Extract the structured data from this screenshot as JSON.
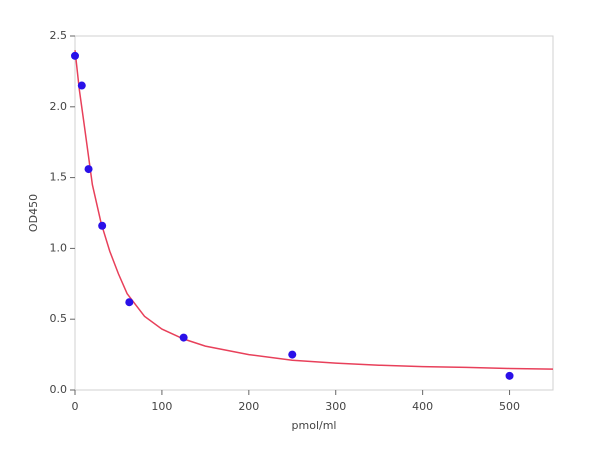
{
  "chart_data": {
    "type": "scatter",
    "xlabel": "pmol/ml",
    "ylabel": "OD450",
    "xlim": [
      0,
      550
    ],
    "ylim": [
      0,
      2.5
    ],
    "xticks": [
      0,
      100,
      200,
      300,
      400,
      500
    ],
    "yticks": [
      {
        "value": 0,
        "label": "0.0"
      },
      0.5,
      {
        "value": 1,
        "label": "1.0"
      },
      1.5,
      {
        "value": 2,
        "label": "2.0"
      },
      2.5
    ],
    "series": [
      {
        "kind": "points",
        "color": "#2a10e8",
        "x": [
          0,
          7.8,
          15.6,
          31.25,
          62.5,
          125,
          250,
          500
        ],
        "values": [
          2.36,
          2.15,
          1.56,
          1.16,
          0.62,
          0.37,
          0.25,
          0.1
        ]
      },
      {
        "kind": "line",
        "color": "#e8405a",
        "x": [
          0,
          5,
          10,
          20,
          30,
          40,
          50,
          60,
          80,
          100,
          125,
          150,
          200,
          250,
          300,
          350,
          400,
          450,
          500,
          550
        ],
        "values": [
          2.4,
          2.12,
          1.9,
          1.45,
          1.18,
          0.98,
          0.82,
          0.68,
          0.52,
          0.43,
          0.36,
          0.31,
          0.25,
          0.21,
          0.19,
          0.175,
          0.165,
          0.16,
          0.152,
          0.147
        ]
      }
    ]
  }
}
